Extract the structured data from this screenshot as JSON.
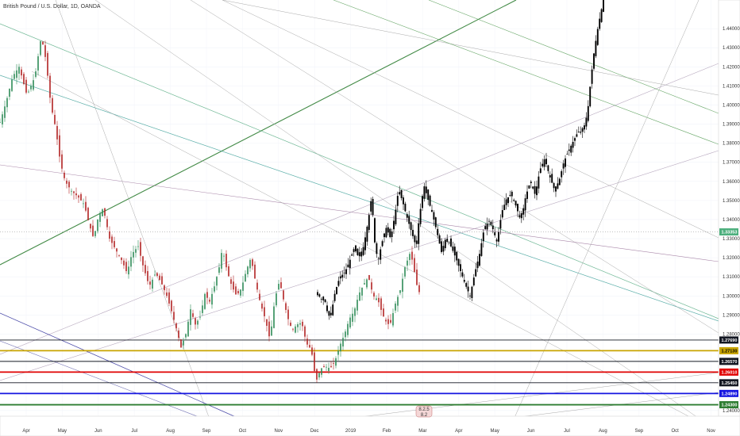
{
  "header": {
    "title": "British Pound / U.S. Dollar, 1D, OANDA"
  },
  "chart_data": {
    "type": "candlestick",
    "instrument": "British Pound / U.S. Dollar",
    "timeframe": "1D",
    "source": "OANDA",
    "ylim": [
      1.237,
      1.455
    ],
    "y_ticks": [
      "1.44000",
      "1.43000",
      "1.42000",
      "1.41000",
      "1.40000",
      "1.39000",
      "1.38000",
      "1.37000",
      "1.36000",
      "1.35000",
      "1.34000",
      "1.33000",
      "1.32000",
      "1.31000",
      "1.30000",
      "1.29000",
      "1.28000",
      "1.24000"
    ],
    "x_ticks": [
      "Apr",
      "May",
      "Jun",
      "Jul",
      "Aug",
      "Sep",
      "Oct",
      "Nov",
      "Dec",
      "2019",
      "Feb",
      "Mar",
      "Apr",
      "May",
      "Jun",
      "Jul",
      "Aug",
      "Sep",
      "Oct",
      "Nov"
    ],
    "current_price": "1.33353",
    "level_labels": [
      {
        "value": 1.2769,
        "text": "1.27690",
        "color": "#131722"
      },
      {
        "value": 1.2713,
        "text": "1.27130",
        "color": "#c8a400"
      },
      {
        "value": 1.2657,
        "text": "1.26570",
        "color": "#131722"
      },
      {
        "value": 1.2601,
        "text": "1.26010",
        "color": "#e00000"
      },
      {
        "value": 1.2545,
        "text": "1.25450",
        "color": "#131722"
      },
      {
        "value": 1.2489,
        "text": "1.24890",
        "color": "#1515e0"
      },
      {
        "value": 1.243,
        "text": "1.24300",
        "color": "#2e7d32"
      }
    ],
    "marker_labels": [
      "8.2.5",
      "8.2"
    ],
    "series": [
      {
        "segment": "2018 daily",
        "color_up": "#2e8b57",
        "color_down": "#b22222",
        "close_path": [
          [
            0,
            1.391
          ],
          [
            8,
            1.402
          ],
          [
            16,
            1.415
          ],
          [
            24,
            1.42
          ],
          [
            34,
            1.405
          ],
          [
            44,
            1.415
          ],
          [
            52,
            1.436
          ],
          [
            58,
            1.423
          ],
          [
            64,
            1.4
          ],
          [
            70,
            1.388
          ],
          [
            76,
            1.37
          ],
          [
            82,
            1.36
          ],
          [
            90,
            1.355
          ],
          [
            98,
            1.352
          ],
          [
            106,
            1.348
          ],
          [
            112,
            1.338
          ],
          [
            118,
            1.33
          ],
          [
            124,
            1.342
          ],
          [
            130,
            1.346
          ],
          [
            138,
            1.33
          ],
          [
            146,
            1.324
          ],
          [
            154,
            1.318
          ],
          [
            160,
            1.312
          ],
          [
            166,
            1.322
          ],
          [
            174,
            1.326
          ],
          [
            180,
            1.316
          ],
          [
            188,
            1.305
          ],
          [
            196,
            1.312
          ],
          [
            204,
            1.306
          ],
          [
            210,
            1.3
          ],
          [
            216,
            1.292
          ],
          [
            222,
            1.283
          ],
          [
            228,
            1.273
          ],
          [
            234,
            1.28
          ],
          [
            240,
            1.293
          ],
          [
            246,
            1.285
          ],
          [
            252,
            1.289
          ],
          [
            258,
            1.301
          ],
          [
            264,
            1.297
          ],
          [
            270,
            1.305
          ],
          [
            276,
            1.315
          ],
          [
            280,
            1.325
          ],
          [
            286,
            1.313
          ],
          [
            292,
            1.305
          ],
          [
            298,
            1.3
          ],
          [
            304,
            1.304
          ],
          [
            310,
            1.313
          ],
          [
            316,
            1.32
          ],
          [
            322,
            1.307
          ],
          [
            328,
            1.296
          ],
          [
            334,
            1.288
          ],
          [
            340,
            1.277
          ],
          [
            346,
            1.298
          ],
          [
            352,
            1.308
          ],
          [
            356,
            1.3
          ],
          [
            362,
            1.289
          ],
          [
            368,
            1.282
          ],
          [
            374,
            1.285
          ],
          [
            380,
            1.286
          ],
          [
            386,
            1.275
          ],
          [
            392,
            1.272
          ],
          [
            398,
            1.255
          ],
          [
            404,
            1.262
          ],
          [
            410,
            1.263
          ],
          [
            416,
            1.262
          ],
          [
            422,
            1.266
          ],
          [
            428,
            1.274
          ],
          [
            434,
            1.28
          ],
          [
            440,
            1.288
          ],
          [
            446,
            1.292
          ],
          [
            452,
            1.301
          ],
          [
            458,
            1.306
          ],
          [
            464,
            1.31
          ],
          [
            470,
            1.3
          ],
          [
            476,
            1.298
          ],
          [
            482,
            1.29
          ],
          [
            488,
            1.285
          ],
          [
            492,
            1.286
          ],
          [
            498,
            1.296
          ],
          [
            504,
            1.303
          ],
          [
            510,
            1.315
          ],
          [
            516,
            1.322
          ],
          [
            520,
            1.318
          ],
          [
            524,
            1.307
          ],
          [
            528,
            1.302
          ]
        ]
      },
      {
        "segment": "2019 daily",
        "color_up": "#000000",
        "color_down": "#000000",
        "close_path": [
          [
            400,
            1.302
          ],
          [
            404,
            1.298
          ],
          [
            408,
            1.3
          ],
          [
            412,
            1.292
          ],
          [
            416,
            1.288
          ],
          [
            422,
            1.302
          ],
          [
            428,
            1.31
          ],
          [
            434,
            1.312
          ],
          [
            440,
            1.318
          ],
          [
            446,
            1.325
          ],
          [
            452,
            1.32
          ],
          [
            458,
            1.326
          ],
          [
            464,
            1.34
          ],
          [
            468,
            1.352
          ],
          [
            472,
            1.328
          ],
          [
            476,
            1.318
          ],
          [
            480,
            1.326
          ],
          [
            486,
            1.336
          ],
          [
            492,
            1.33
          ],
          [
            498,
            1.344
          ],
          [
            502,
            1.356
          ],
          [
            508,
            1.348
          ],
          [
            512,
            1.342
          ],
          [
            518,
            1.334
          ],
          [
            524,
            1.326
          ],
          [
            528,
            1.341
          ],
          [
            534,
            1.358
          ],
          [
            538,
            1.352
          ],
          [
            544,
            1.344
          ],
          [
            550,
            1.334
          ],
          [
            556,
            1.323
          ],
          [
            562,
            1.331
          ],
          [
            568,
            1.326
          ],
          [
            574,
            1.32
          ],
          [
            580,
            1.313
          ],
          [
            586,
            1.306
          ],
          [
            592,
            1.3
          ],
          [
            598,
            1.312
          ],
          [
            604,
            1.322
          ],
          [
            610,
            1.336
          ],
          [
            616,
            1.339
          ],
          [
            620,
            1.336
          ],
          [
            626,
            1.328
          ],
          [
            632,
            1.344
          ],
          [
            638,
            1.351
          ],
          [
            644,
            1.353
          ],
          [
            650,
            1.347
          ],
          [
            656,
            1.339
          ],
          [
            662,
            1.352
          ],
          [
            668,
            1.36
          ],
          [
            674,
            1.353
          ],
          [
            680,
            1.366
          ],
          [
            686,
            1.372
          ],
          [
            692,
            1.363
          ],
          [
            698,
            1.356
          ],
          [
            704,
            1.36
          ],
          [
            710,
            1.37
          ],
          [
            716,
            1.376
          ],
          [
            722,
            1.381
          ],
          [
            728,
            1.386
          ],
          [
            734,
            1.386
          ],
          [
            740,
            1.396
          ],
          [
            744,
            1.413
          ],
          [
            748,
            1.427
          ],
          [
            752,
            1.438
          ],
          [
            756,
            1.447
          ],
          [
            760,
            1.455
          ]
        ]
      }
    ]
  }
}
